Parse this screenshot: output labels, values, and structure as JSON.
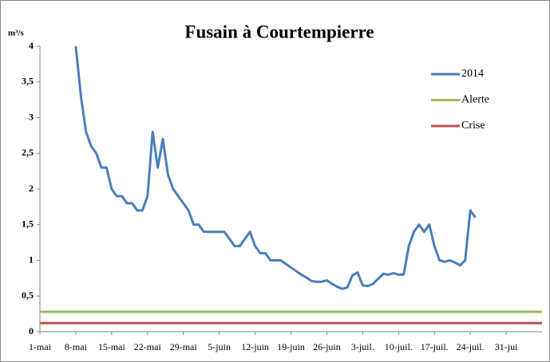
{
  "chart_data": {
    "type": "line",
    "title": "Fusain à Courtempierre",
    "y_label": "m³/s",
    "x": [
      "8-mai",
      "9-mai",
      "10-mai",
      "11-mai",
      "12-mai",
      "13-mai",
      "14-mai",
      "15-mai",
      "16-mai",
      "17-mai",
      "18-mai",
      "19-mai",
      "20-mai",
      "21-mai",
      "22-mai",
      "23-mai",
      "24-mai",
      "25-mai",
      "26-mai",
      "27-mai",
      "28-mai",
      "29-mai",
      "30-mai",
      "31-mai",
      "1-juin",
      "2-juin",
      "3-juin",
      "4-juin",
      "5-juin",
      "6-juin",
      "7-juin",
      "8-juin",
      "9-juin",
      "10-juin",
      "11-juin",
      "12-juin",
      "13-juin",
      "14-juin",
      "15-juin",
      "16-juin",
      "17-juin",
      "18-juin",
      "19-juin",
      "20-juin",
      "21-juin",
      "22-juin",
      "23-juin",
      "24-juin",
      "25-juin",
      "26-juin",
      "27-juin",
      "28-juin",
      "29-juin",
      "30-juin",
      "1-juil.",
      "2-juil.",
      "3-juil.",
      "4-juil.",
      "5-juil.",
      "6-juil.",
      "7-juil.",
      "8-juil.",
      "9-juil.",
      "10-juil.",
      "11-juil.",
      "12-juil.",
      "13-juil.",
      "14-juil.",
      "15-juil.",
      "16-juil.",
      "17-juil.",
      "18-juil.",
      "19-juil.",
      "20-juil.",
      "21-juil.",
      "22-juil.",
      "23-juil.",
      "24-juil.",
      "25-juil."
    ],
    "series": [
      {
        "name": "2014",
        "color": "#4a7ebb",
        "values": [
          4.0,
          3.3,
          2.8,
          2.6,
          2.5,
          2.3,
          2.3,
          2.0,
          1.9,
          1.9,
          1.8,
          1.8,
          1.7,
          1.7,
          1.9,
          2.8,
          2.3,
          2.7,
          2.2,
          2.0,
          1.9,
          1.8,
          1.7,
          1.5,
          1.5,
          1.4,
          1.4,
          1.4,
          1.4,
          1.4,
          1.3,
          1.2,
          1.2,
          1.3,
          1.4,
          1.2,
          1.1,
          1.1,
          1.0,
          1.0,
          1.0,
          0.95,
          0.9,
          0.85,
          0.8,
          0.76,
          0.71,
          0.7,
          0.7,
          0.72,
          0.67,
          0.63,
          0.6,
          0.62,
          0.79,
          0.83,
          0.65,
          0.64,
          0.67,
          0.74,
          0.81,
          0.8,
          0.82,
          0.8,
          0.8,
          1.2,
          1.4,
          1.5,
          1.4,
          1.5,
          1.2,
          1.0,
          0.98,
          1.0,
          0.97,
          0.93,
          1.0,
          1.7,
          1.6
        ]
      },
      {
        "name": "Alerte",
        "color": "#9bbb59",
        "constant": 0.28
      },
      {
        "name": "Crise",
        "color": "#c0504d",
        "constant": 0.12
      }
    ],
    "xlim": [
      "1-mai",
      "7-août"
    ],
    "xticks": [
      "1-mai",
      "8-mai",
      "15-mai",
      "22-mai",
      "29-mai",
      "5-juin",
      "12-juin",
      "19-juin",
      "26-juin",
      "3-juil.",
      "10-juil.",
      "17-juil.",
      "24-juil.",
      {
        "value": "31-juil.",
        "label": "31-jui"
      }
    ],
    "ylim": [
      0,
      4
    ],
    "yticks": [
      0,
      {
        "value": 0.5,
        "label": "0,5"
      },
      1,
      {
        "value": 1.5,
        "label": "1,5"
      },
      2,
      {
        "value": 2.5,
        "label": "2,5"
      },
      3,
      {
        "value": 3.5,
        "label": "3,5"
      },
      4
    ],
    "grid": false,
    "legend": "right"
  }
}
